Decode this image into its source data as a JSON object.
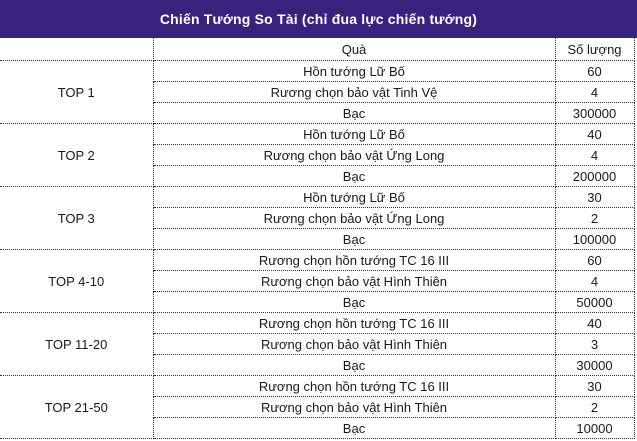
{
  "title": "Chiến Tướng So Tài (chỉ đua lực chiến tướng)",
  "colors": {
    "title_bg": "#37227d",
    "title_text": "#ffffff",
    "grid_border": "#333333",
    "cell_text": "#1a1a1a"
  },
  "table": {
    "headers": {
      "rank": "",
      "reward": "Quà",
      "quantity": "Số lượng"
    },
    "groups": [
      {
        "rank": "TOP 1",
        "rows": [
          {
            "reward": "Hồn tướng Lữ Bố",
            "quantity": "60"
          },
          {
            "reward": "Rương chọn bảo vật Tinh Vệ",
            "quantity": "4"
          },
          {
            "reward": "Bạc",
            "quantity": "300000"
          }
        ]
      },
      {
        "rank": "TOP 2",
        "rows": [
          {
            "reward": "Hồn tướng Lữ Bố",
            "quantity": "40"
          },
          {
            "reward": "Rương chọn bảo vật Ứng Long",
            "quantity": "4"
          },
          {
            "reward": "Bạc",
            "quantity": "200000"
          }
        ]
      },
      {
        "rank": "TOP 3",
        "rows": [
          {
            "reward": "Hồn tướng Lữ Bố",
            "quantity": "30"
          },
          {
            "reward": "Rương chọn bảo vật Ứng Long",
            "quantity": "2"
          },
          {
            "reward": "Bạc",
            "quantity": "100000"
          }
        ]
      },
      {
        "rank": "TOP 4-10",
        "rows": [
          {
            "reward": "Rương chọn hồn tướng TC 16 III",
            "quantity": "60"
          },
          {
            "reward": "Rương chọn bảo vật Hình Thiên",
            "quantity": "4"
          },
          {
            "reward": "Bạc",
            "quantity": "50000"
          }
        ]
      },
      {
        "rank": "TOP 11-20",
        "rows": [
          {
            "reward": "Rương chọn hồn tướng TC 16 III",
            "quantity": "40"
          },
          {
            "reward": "Rương chọn bảo vật Hình Thiên",
            "quantity": "3"
          },
          {
            "reward": "Bạc",
            "quantity": "30000"
          }
        ]
      },
      {
        "rank": "TOP 21-50",
        "rows": [
          {
            "reward": "Rương chọn hồn tướng TC 16 III",
            "quantity": "30"
          },
          {
            "reward": "Rương chọn bảo vật Hình Thiên",
            "quantity": "2"
          },
          {
            "reward": "Bạc",
            "quantity": "10000"
          }
        ]
      }
    ]
  }
}
